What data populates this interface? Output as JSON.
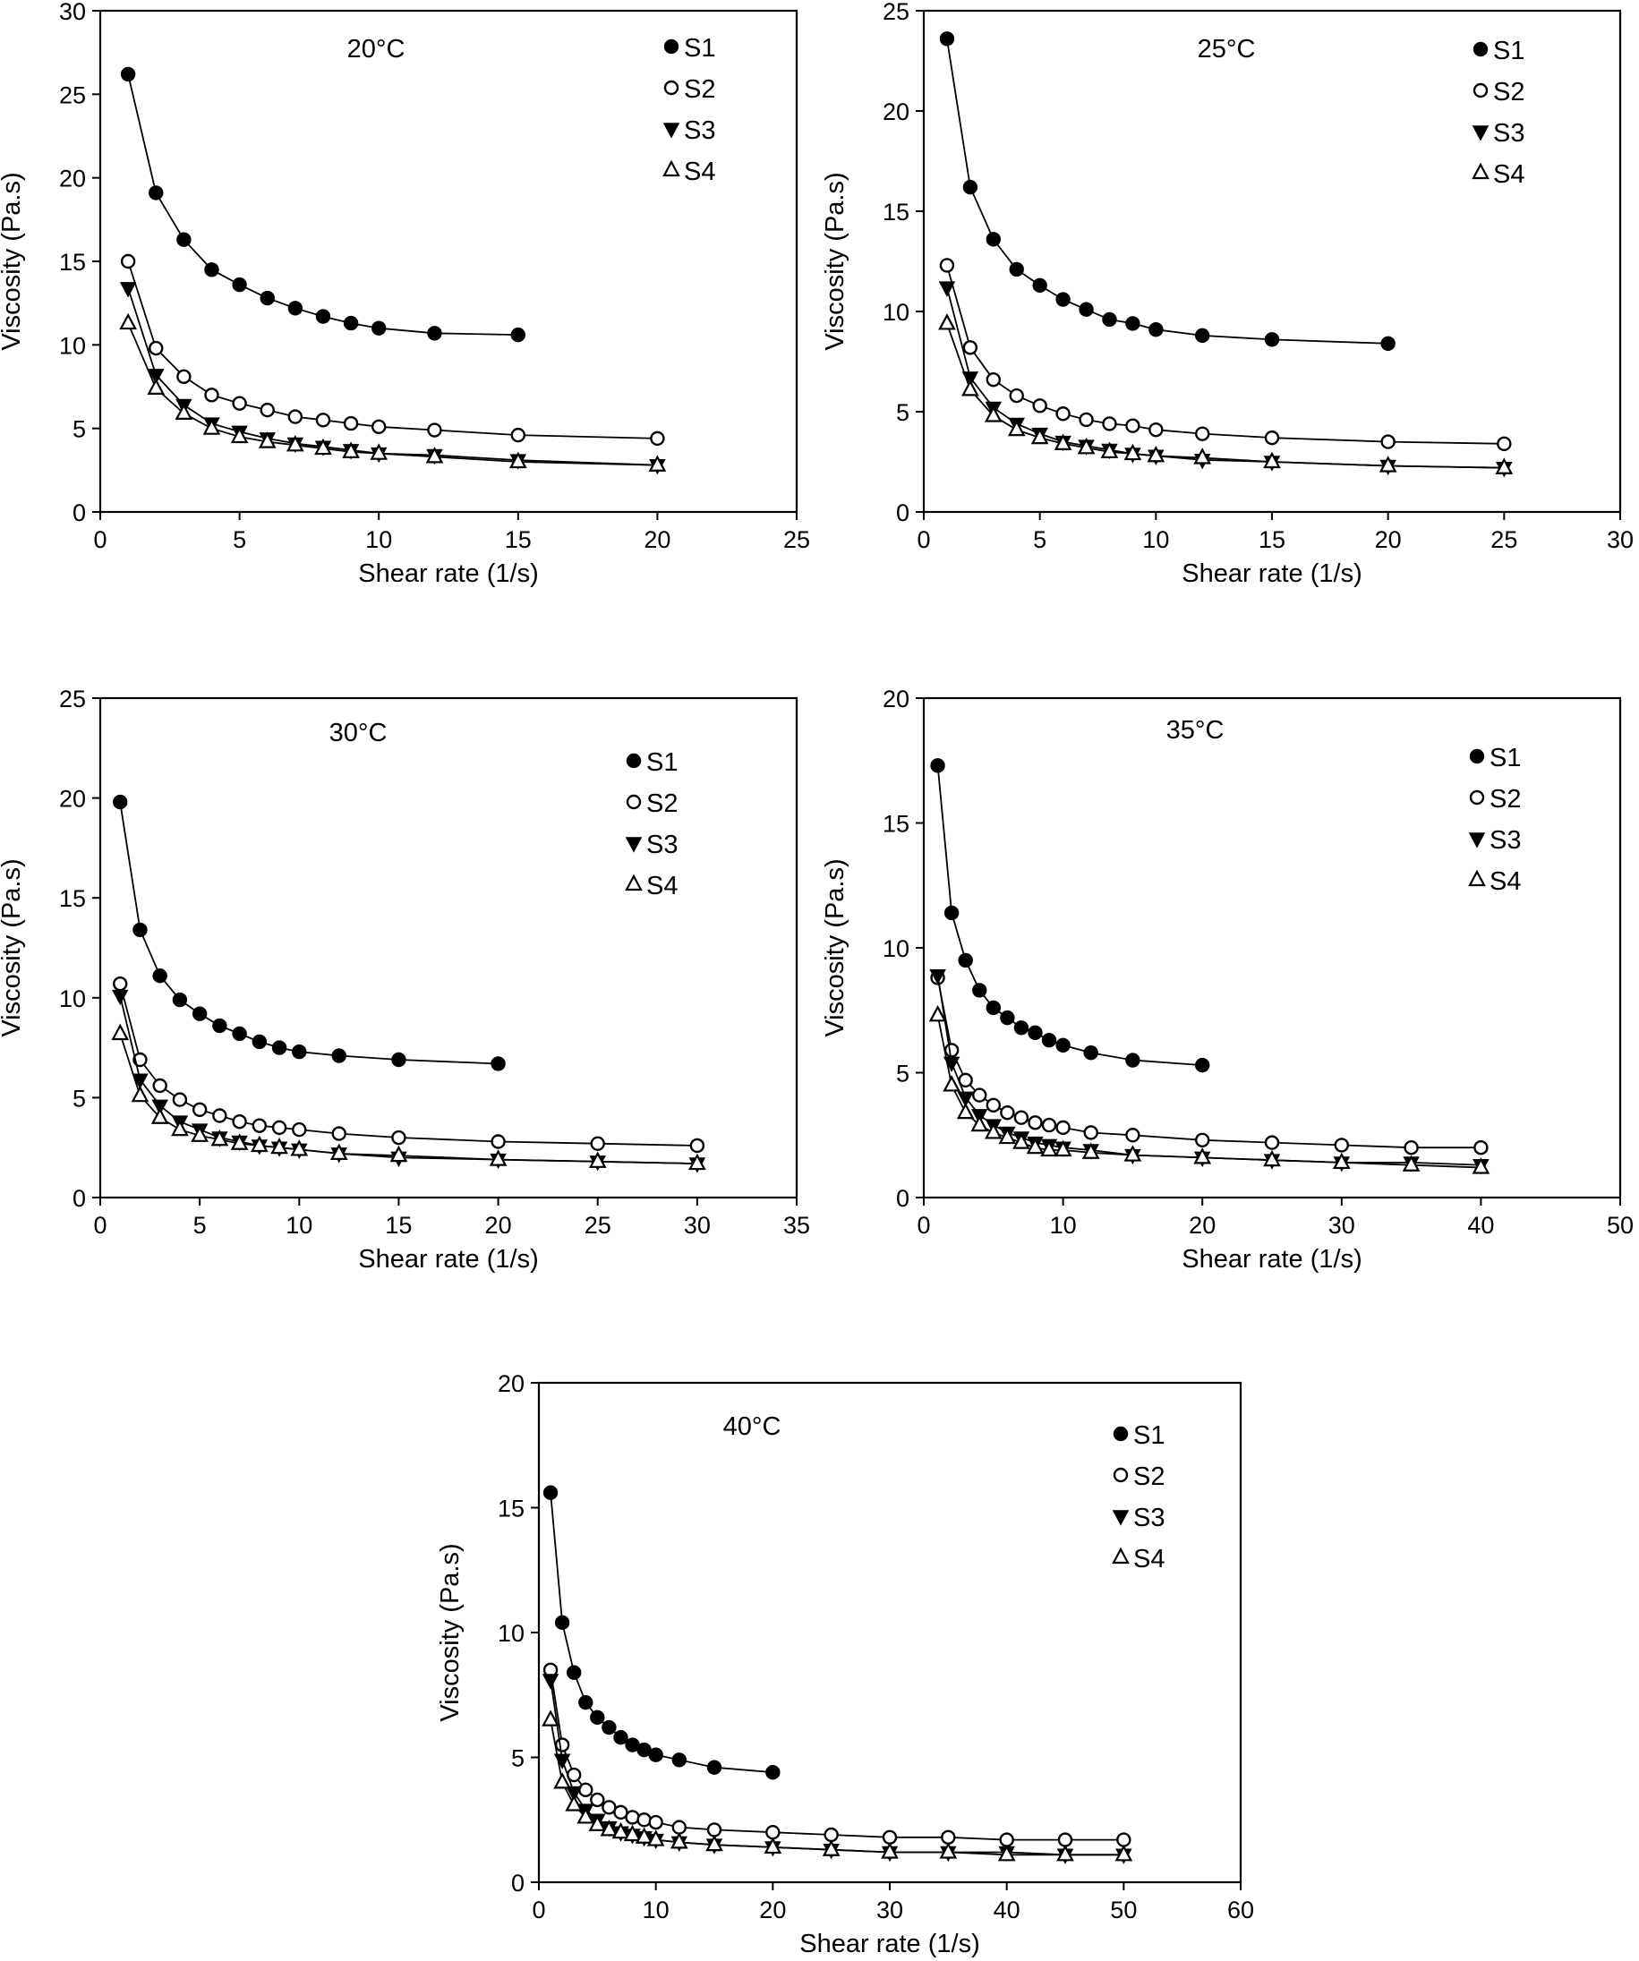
{
  "chart_data": [
    {
      "type": "line",
      "title": "20°C",
      "xlabel": "Shear rate (1/s)",
      "ylabel": "Viscosity (Pa.s)",
      "xlim": [
        0,
        25
      ],
      "ylim": [
        0,
        30
      ],
      "xticks": [
        "0",
        "5",
        "10",
        "15",
        "20",
        "25"
      ],
      "yticks": [
        "0",
        "5",
        "10",
        "15",
        "20",
        "25",
        "30"
      ],
      "grid": false,
      "legend": "top-right",
      "series": [
        {
          "name": "S1",
          "marker": "filled-circle",
          "x": [
            1,
            2,
            3,
            4,
            5,
            6,
            7,
            8,
            9,
            10,
            12,
            15
          ],
          "y": [
            26.2,
            19.1,
            16.3,
            14.5,
            13.6,
            12.8,
            12.2,
            11.7,
            11.3,
            11.0,
            10.7,
            10.6
          ]
        },
        {
          "name": "S2",
          "marker": "open-circle",
          "x": [
            1,
            2,
            3,
            4,
            5,
            6,
            7,
            8,
            9,
            10,
            12,
            15,
            20
          ],
          "y": [
            15.0,
            9.8,
            8.1,
            7.0,
            6.5,
            6.1,
            5.7,
            5.5,
            5.3,
            5.1,
            4.9,
            4.6,
            4.4
          ]
        },
        {
          "name": "S3",
          "marker": "filled-triangle-down",
          "x": [
            1,
            2,
            3,
            4,
            5,
            6,
            7,
            8,
            9,
            10,
            12,
            15,
            20
          ],
          "y": [
            13.4,
            8.2,
            6.4,
            5.3,
            4.8,
            4.4,
            4.1,
            3.9,
            3.7,
            3.5,
            3.4,
            3.1,
            2.8
          ]
        },
        {
          "name": "S4",
          "marker": "open-triangle",
          "x": [
            1,
            2,
            3,
            4,
            5,
            6,
            7,
            8,
            9,
            10,
            12,
            15,
            20
          ],
          "y": [
            11.3,
            7.4,
            5.9,
            5.0,
            4.5,
            4.2,
            4.0,
            3.8,
            3.6,
            3.5,
            3.3,
            3.0,
            2.8
          ]
        }
      ]
    },
    {
      "type": "line",
      "title": "25°C",
      "xlabel": "Shear rate (1/s)",
      "ylabel": "Viscosity (Pa.s)",
      "xlim": [
        0,
        30
      ],
      "ylim": [
        0,
        25
      ],
      "xticks": [
        "0",
        "5",
        "10",
        "15",
        "20",
        "25",
        "30"
      ],
      "yticks": [
        "0",
        "5",
        "10",
        "15",
        "20",
        "25"
      ],
      "grid": false,
      "legend": "top-right",
      "series": [
        {
          "name": "S1",
          "marker": "filled-circle",
          "x": [
            1,
            2,
            3,
            4,
            5,
            6,
            7,
            8,
            9,
            10,
            12,
            15,
            20
          ],
          "y": [
            23.6,
            16.2,
            13.6,
            12.1,
            11.3,
            10.6,
            10.1,
            9.6,
            9.4,
            9.1,
            8.8,
            8.6,
            8.4
          ]
        },
        {
          "name": "S2",
          "marker": "open-circle",
          "x": [
            1,
            2,
            3,
            4,
            5,
            6,
            7,
            8,
            9,
            10,
            12,
            15,
            20,
            25
          ],
          "y": [
            12.3,
            8.2,
            6.6,
            5.8,
            5.3,
            4.9,
            4.6,
            4.4,
            4.3,
            4.1,
            3.9,
            3.7,
            3.5,
            3.4
          ]
        },
        {
          "name": "S3",
          "marker": "filled-triangle-down",
          "x": [
            1,
            2,
            3,
            4,
            5,
            6,
            7,
            8,
            9,
            10,
            12,
            15,
            20,
            25
          ],
          "y": [
            11.2,
            6.7,
            5.2,
            4.4,
            3.9,
            3.5,
            3.3,
            3.1,
            2.9,
            2.8,
            2.6,
            2.5,
            2.3,
            2.2
          ]
        },
        {
          "name": "S4",
          "marker": "open-triangle",
          "x": [
            1,
            2,
            3,
            4,
            5,
            6,
            7,
            8,
            9,
            10,
            12,
            15,
            20,
            25
          ],
          "y": [
            9.4,
            6.1,
            4.8,
            4.1,
            3.7,
            3.4,
            3.2,
            3.0,
            2.9,
            2.8,
            2.7,
            2.5,
            2.3,
            2.2
          ]
        }
      ]
    },
    {
      "type": "line",
      "title": "30°C",
      "xlabel": "Shear rate (1/s)",
      "ylabel": "Viscosity (Pa.s)",
      "xlim": [
        0,
        35
      ],
      "ylim": [
        0,
        25
      ],
      "xticks": [
        "0",
        "5",
        "10",
        "15",
        "20",
        "25",
        "30",
        "35"
      ],
      "yticks": [
        "0",
        "5",
        "10",
        "15",
        "20",
        "25"
      ],
      "grid": false,
      "legend": "top-right",
      "series": [
        {
          "name": "S1",
          "marker": "filled-circle",
          "x": [
            1,
            2,
            3,
            4,
            5,
            6,
            7,
            8,
            9,
            10,
            12,
            15,
            20
          ],
          "y": [
            19.8,
            13.4,
            11.1,
            9.9,
            9.2,
            8.6,
            8.2,
            7.8,
            7.5,
            7.3,
            7.1,
            6.9,
            6.7
          ]
        },
        {
          "name": "S2",
          "marker": "open-circle",
          "x": [
            1,
            2,
            3,
            4,
            5,
            6,
            7,
            8,
            9,
            10,
            12,
            15,
            20,
            25,
            30
          ],
          "y": [
            10.7,
            6.9,
            5.6,
            4.9,
            4.4,
            4.1,
            3.8,
            3.6,
            3.5,
            3.4,
            3.2,
            3.0,
            2.8,
            2.7,
            2.6
          ]
        },
        {
          "name": "S3",
          "marker": "filled-triangle-down",
          "x": [
            1,
            2,
            3,
            4,
            5,
            6,
            7,
            8,
            9,
            10,
            12,
            15,
            20,
            25,
            30
          ],
          "y": [
            10.1,
            5.9,
            4.6,
            3.8,
            3.4,
            3.0,
            2.8,
            2.6,
            2.5,
            2.4,
            2.2,
            2.0,
            1.9,
            1.8,
            1.7
          ]
        },
        {
          "name": "S4",
          "marker": "open-triangle",
          "x": [
            1,
            2,
            3,
            4,
            5,
            6,
            7,
            8,
            9,
            10,
            12,
            15,
            20,
            25,
            30
          ],
          "y": [
            8.2,
            5.1,
            4.0,
            3.4,
            3.1,
            2.9,
            2.7,
            2.6,
            2.5,
            2.4,
            2.2,
            2.1,
            1.9,
            1.8,
            1.7
          ]
        }
      ]
    },
    {
      "type": "line",
      "title": "35°C",
      "xlabel": "Shear rate (1/s)",
      "ylabel": "Viscosity (Pa.s)",
      "xlim": [
        0,
        50
      ],
      "ylim": [
        0,
        20
      ],
      "xticks": [
        "0",
        "10",
        "20",
        "30",
        "40",
        "50"
      ],
      "yticks": [
        "0",
        "5",
        "10",
        "15",
        "20"
      ],
      "grid": false,
      "legend": "top-right",
      "series": [
        {
          "name": "S1",
          "marker": "filled-circle",
          "x": [
            1,
            2,
            3,
            4,
            5,
            6,
            7,
            8,
            9,
            10,
            12,
            15,
            20
          ],
          "y": [
            17.3,
            11.4,
            9.5,
            8.3,
            7.6,
            7.2,
            6.8,
            6.6,
            6.3,
            6.1,
            5.8,
            5.5,
            5.3
          ]
        },
        {
          "name": "S2",
          "marker": "open-circle",
          "x": [
            1,
            2,
            3,
            4,
            5,
            6,
            7,
            8,
            9,
            10,
            12,
            15,
            20,
            25,
            30,
            35,
            40
          ],
          "y": [
            8.8,
            5.9,
            4.7,
            4.1,
            3.7,
            3.4,
            3.2,
            3.0,
            2.9,
            2.8,
            2.6,
            2.5,
            2.3,
            2.2,
            2.1,
            2.0,
            2.0
          ]
        },
        {
          "name": "S3",
          "marker": "filled-triangle-down",
          "x": [
            1,
            2,
            3,
            4,
            5,
            6,
            7,
            8,
            9,
            10,
            12,
            15,
            20,
            25,
            30,
            35,
            40
          ],
          "y": [
            8.9,
            5.4,
            4.0,
            3.3,
            2.9,
            2.6,
            2.4,
            2.2,
            2.1,
            2.0,
            1.9,
            1.7,
            1.6,
            1.5,
            1.4,
            1.4,
            1.3
          ]
        },
        {
          "name": "S4",
          "marker": "open-triangle",
          "x": [
            1,
            2,
            3,
            4,
            5,
            6,
            7,
            8,
            9,
            10,
            12,
            15,
            20,
            25,
            30,
            35,
            40
          ],
          "y": [
            7.3,
            4.5,
            3.4,
            2.9,
            2.6,
            2.4,
            2.2,
            2.0,
            1.9,
            1.9,
            1.8,
            1.7,
            1.6,
            1.5,
            1.4,
            1.3,
            1.2
          ]
        }
      ]
    },
    {
      "type": "line",
      "title": "40°C",
      "xlabel": "Shear rate (1/s)",
      "ylabel": "Viscosity (Pa.s)",
      "xlim": [
        0,
        60
      ],
      "ylim": [
        0,
        20
      ],
      "xticks": [
        "0",
        "10",
        "20",
        "30",
        "40",
        "50",
        "60"
      ],
      "yticks": [
        "0",
        "5",
        "10",
        "15",
        "20"
      ],
      "grid": false,
      "legend": "top-right",
      "series": [
        {
          "name": "S1",
          "marker": "filled-circle",
          "x": [
            1,
            2,
            3,
            4,
            5,
            6,
            7,
            8,
            9,
            10,
            12,
            15,
            20
          ],
          "y": [
            15.6,
            10.4,
            8.4,
            7.2,
            6.6,
            6.2,
            5.8,
            5.5,
            5.3,
            5.1,
            4.9,
            4.6,
            4.4
          ]
        },
        {
          "name": "S2",
          "marker": "open-circle",
          "x": [
            1,
            2,
            3,
            4,
            5,
            6,
            7,
            8,
            9,
            10,
            12,
            15,
            20,
            25,
            30,
            35,
            40,
            45,
            50
          ],
          "y": [
            8.5,
            5.5,
            4.3,
            3.7,
            3.3,
            3.0,
            2.8,
            2.6,
            2.5,
            2.4,
            2.2,
            2.1,
            2.0,
            1.9,
            1.8,
            1.8,
            1.7,
            1.7,
            1.7
          ]
        },
        {
          "name": "S3",
          "marker": "filled-triangle-down",
          "x": [
            1,
            2,
            3,
            4,
            5,
            6,
            7,
            8,
            9,
            10,
            12,
            15,
            20,
            25,
            30,
            35,
            40,
            45,
            50
          ],
          "y": [
            8.1,
            4.9,
            3.6,
            2.9,
            2.5,
            2.2,
            2.0,
            1.9,
            1.8,
            1.7,
            1.6,
            1.5,
            1.4,
            1.3,
            1.2,
            1.2,
            1.2,
            1.1,
            1.1
          ]
        },
        {
          "name": "S4",
          "marker": "open-triangle",
          "x": [
            1,
            2,
            3,
            4,
            5,
            6,
            7,
            8,
            9,
            10,
            12,
            15,
            20,
            25,
            30,
            35,
            40,
            45,
            50
          ],
          "y": [
            6.5,
            4.0,
            3.1,
            2.6,
            2.3,
            2.1,
            2.0,
            1.9,
            1.8,
            1.7,
            1.6,
            1.5,
            1.4,
            1.3,
            1.2,
            1.2,
            1.1,
            1.1,
            1.1
          ]
        }
      ]
    }
  ]
}
